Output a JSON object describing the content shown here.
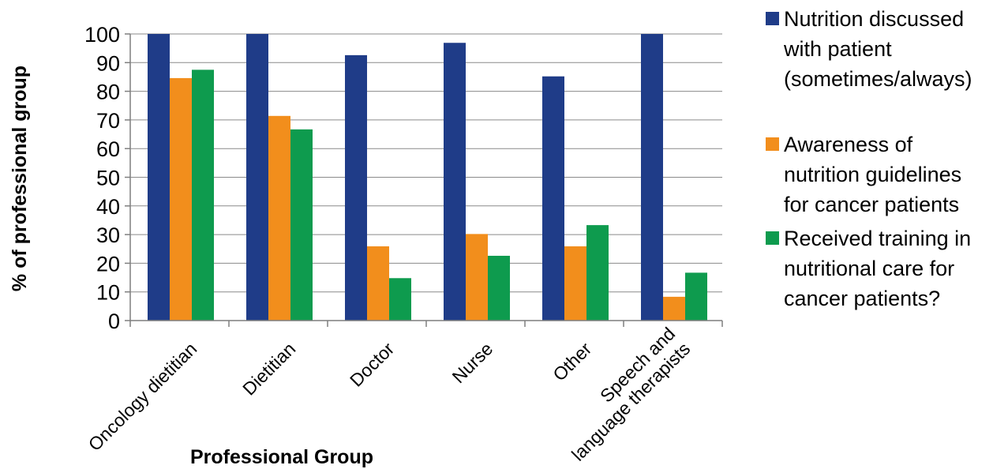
{
  "chart_data": {
    "type": "bar",
    "title": "",
    "xlabel": "Professional Group",
    "ylabel": "% of professional group",
    "ylim": [
      0,
      100
    ],
    "yticks": [
      0,
      10,
      20,
      30,
      40,
      50,
      60,
      70,
      80,
      90,
      100
    ],
    "grid": true,
    "legend_position": "right",
    "categories": [
      [
        "Oncology dietitian"
      ],
      [
        "Dietitian"
      ],
      [
        "Doctor"
      ],
      [
        "Nurse"
      ],
      [
        "Other"
      ],
      [
        "Speech and",
        "language therapists"
      ]
    ],
    "series": [
      {
        "name": "Nutrition discussed with patient (sometimes/always)",
        "legend_lines": [
          "Nutrition discussed",
          "with patient",
          "(sometimes/always)"
        ],
        "color": "#1f3c88",
        "values": [
          100,
          100,
          92.6,
          96.9,
          85.2,
          100
        ]
      },
      {
        "name": "Awareness of nutrition guidelines for cancer patients",
        "legend_lines": [
          "Awareness of",
          "nutrition guidelines",
          "for cancer patients"
        ],
        "color": "#f28e1c",
        "values": [
          84.6,
          71.4,
          25.9,
          30.2,
          25.9,
          8.3
        ]
      },
      {
        "name": "Received training in nutritional care for cancer patients?",
        "legend_lines": [
          "Received training in",
          "nutritional care for",
          "cancer patients?"
        ],
        "color": "#0e9b4e",
        "values": [
          87.5,
          66.7,
          14.8,
          22.6,
          33.3,
          16.7
        ]
      }
    ]
  }
}
